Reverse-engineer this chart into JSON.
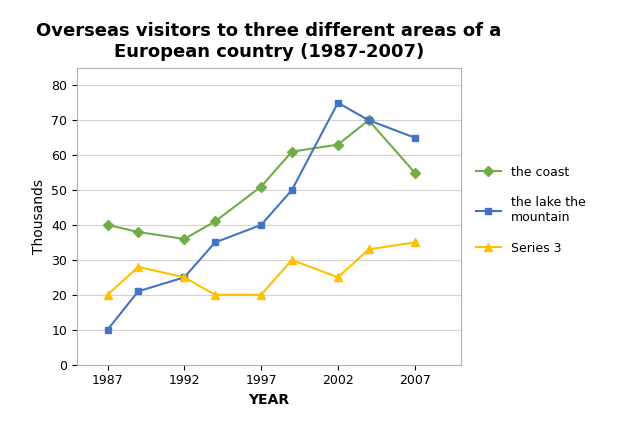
{
  "title": "Overseas visitors to three different areas of a\nEuropean country (1987-2007)",
  "xlabel": "YEAR",
  "ylabel": "Thousands",
  "years": [
    1987,
    1989,
    1992,
    1994,
    1997,
    1999,
    2002,
    2004,
    2007
  ],
  "coast": [
    40,
    38,
    36,
    41,
    51,
    61,
    63,
    70,
    55
  ],
  "lake_mountain": [
    10,
    21,
    25,
    35,
    40,
    50,
    75,
    70,
    65
  ],
  "series3": [
    20,
    28,
    25,
    20,
    20,
    30,
    25,
    33,
    35
  ],
  "coast_color": "#70ad47",
  "lake_color": "#4472c4",
  "series3_color": "#ffc000",
  "ylim": [
    0,
    85
  ],
  "yticks": [
    0,
    10,
    20,
    30,
    40,
    50,
    60,
    70,
    80
  ],
  "xticks": [
    1987,
    1992,
    1997,
    2002,
    2007
  ],
  "legend_labels": [
    "the coast",
    "the lake the\nmountain",
    "Series 3"
  ],
  "title_fontsize": 13,
  "axis_label_fontsize": 10,
  "tick_fontsize": 9,
  "legend_fontsize": 9
}
